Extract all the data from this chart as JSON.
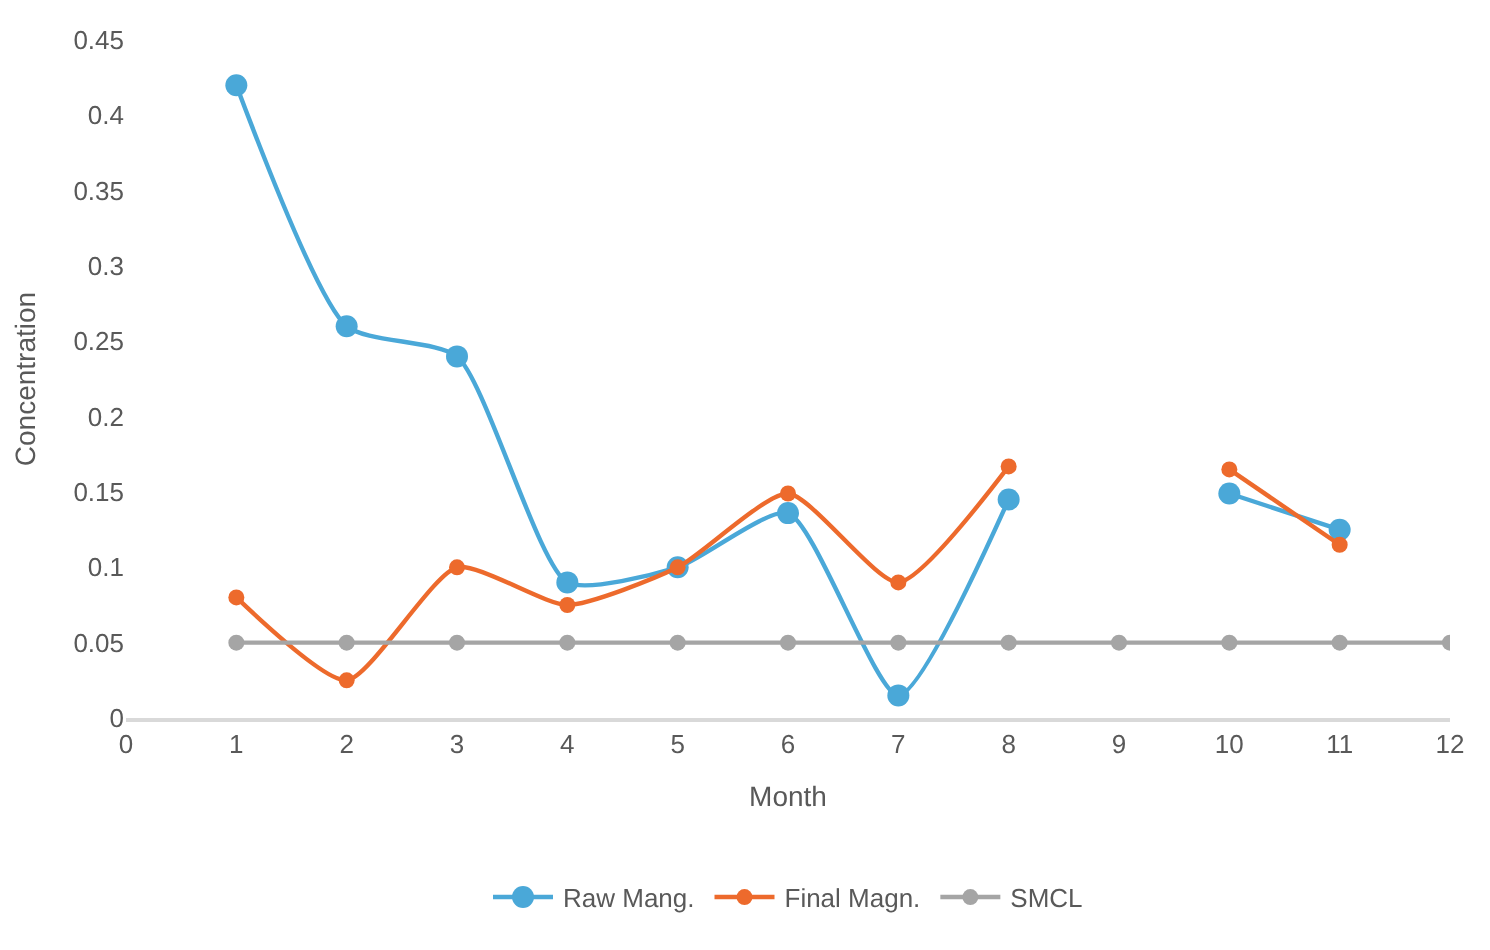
{
  "chart_data": {
    "type": "line",
    "xlabel": "Month",
    "ylabel": "Concentration",
    "x": [
      1,
      2,
      3,
      4,
      5,
      6,
      7,
      8,
      9,
      10,
      11,
      12
    ],
    "series": [
      {
        "name": "Raw Mang.",
        "color": "#4aa8d8",
        "values": [
          0.42,
          0.26,
          0.24,
          0.09,
          0.1,
          0.136,
          0.015,
          0.145,
          null,
          0.149,
          0.125,
          null
        ]
      },
      {
        "name": "Final Magn.",
        "color": "#ed6a2c",
        "values": [
          0.08,
          0.025,
          0.1,
          0.075,
          0.1,
          0.149,
          0.09,
          0.167,
          null,
          0.165,
          0.115,
          null
        ]
      },
      {
        "name": "SMCL",
        "color": "#a5a5a5",
        "values": [
          0.05,
          0.05,
          0.05,
          0.05,
          0.05,
          0.05,
          0.05,
          0.05,
          0.05,
          0.05,
          0.05,
          0.05
        ]
      }
    ],
    "xlim": [
      0,
      12
    ],
    "xticks": [
      0,
      1,
      2,
      3,
      4,
      5,
      6,
      7,
      8,
      9,
      10,
      11,
      12
    ],
    "ylim": [
      0,
      0.45
    ],
    "yticks": [
      0,
      0.05,
      0.1,
      0.15,
      0.2,
      0.25,
      0.3,
      0.35,
      0.4,
      0.45
    ],
    "legend": "bottom",
    "marker": "circle",
    "line_style": "solid"
  }
}
